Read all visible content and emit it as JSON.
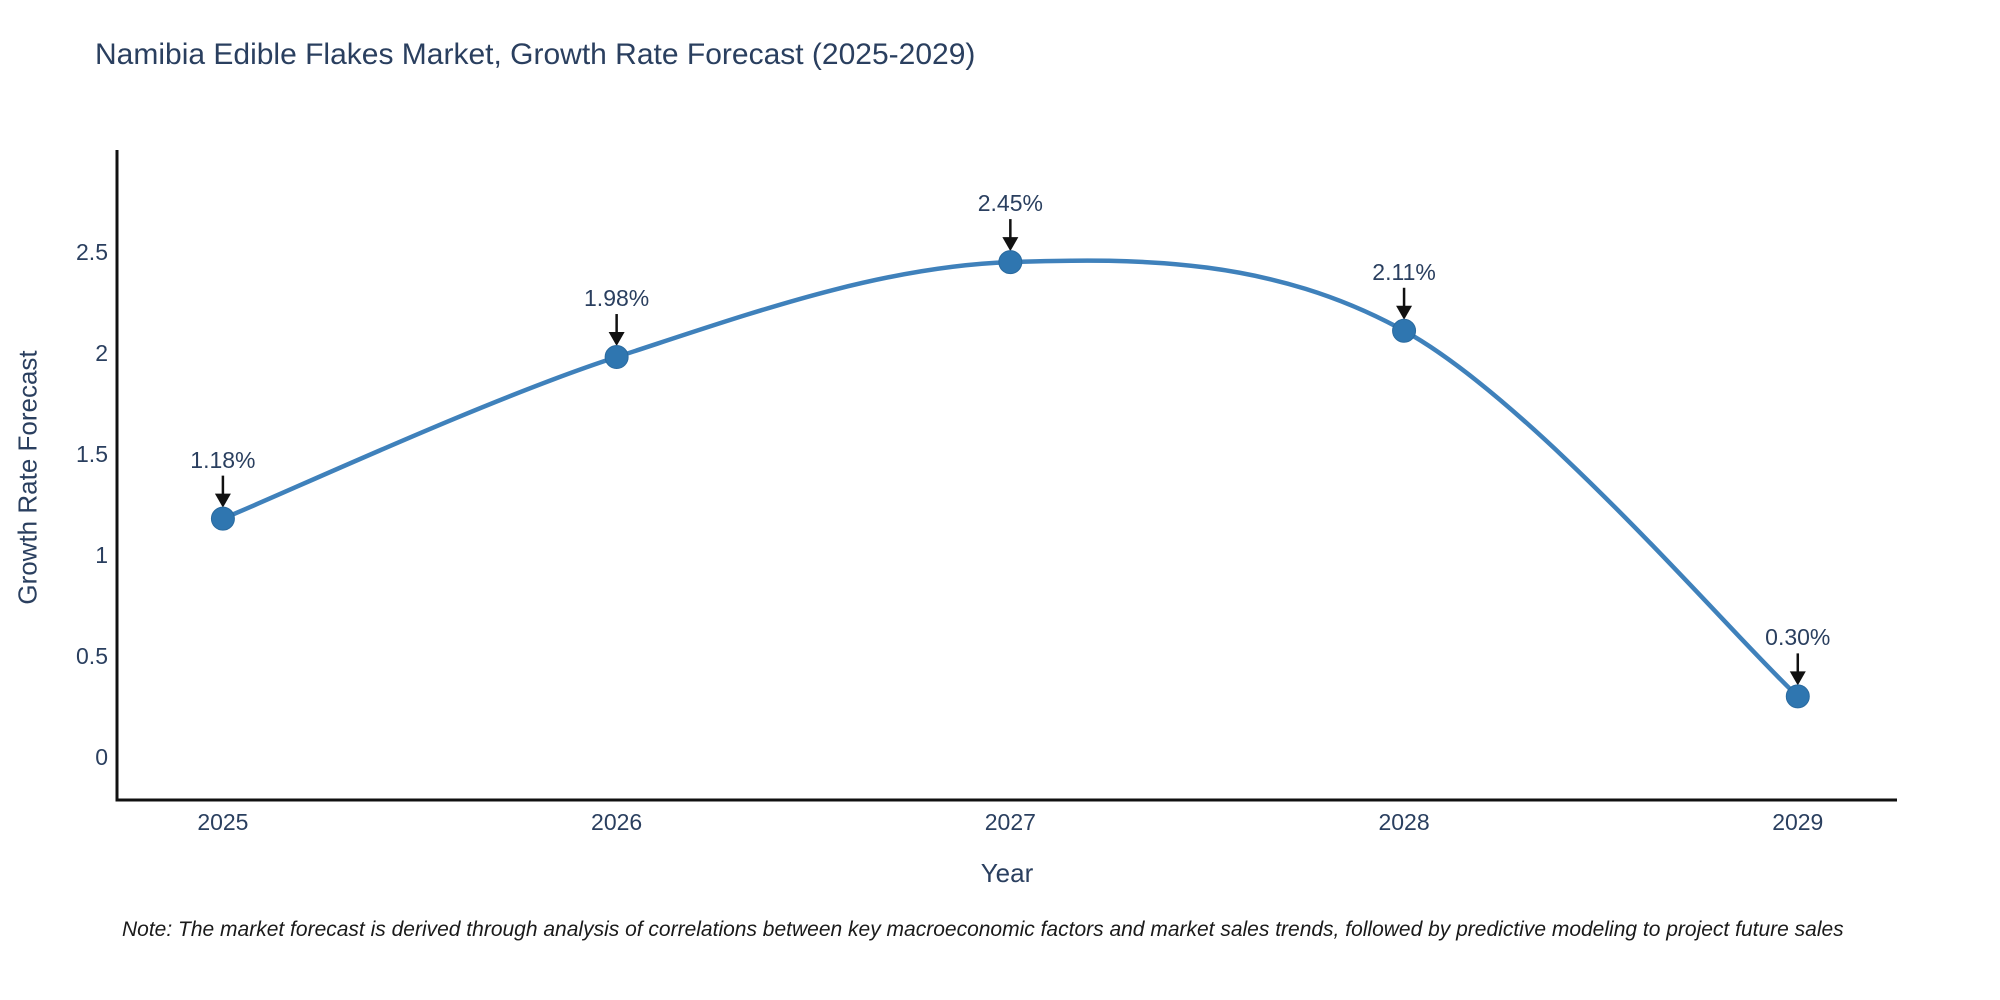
{
  "chart_data": {
    "type": "line",
    "title": "Namibia Edible Flakes Market, Growth Rate Forecast (2025-2029)",
    "xlabel": "Year",
    "ylabel": "Growth Rate Forecast",
    "x": [
      2025,
      2026,
      2027,
      2028,
      2029
    ],
    "series": [
      {
        "name": "Growth Rate Forecast",
        "values": [
          1.18,
          1.98,
          2.45,
          2.11,
          0.3
        ],
        "point_labels": [
          "1.18%",
          "1.98%",
          "2.45%",
          "2.11%",
          "0.30%"
        ]
      }
    ],
    "line_shape": "spline",
    "markers": true,
    "grid": false,
    "legend_position": "none",
    "xtick_labels": [
      "2025",
      "2026",
      "2027",
      "2028",
      "2029"
    ],
    "ytick_values": [
      0,
      0.5,
      1,
      1.5,
      2,
      2.5
    ],
    "ytick_labels": [
      "0",
      "0.5",
      "1",
      "1.5",
      "2",
      "2.5"
    ],
    "xlim": [
      2024.731,
      2029.252
    ],
    "ylim": [
      -0.213,
      3.005
    ],
    "colors": {
      "line": "#3f81bb",
      "marker": "#2f76b0",
      "marker_edge": "#2a6a9f",
      "axis_line": "#111111",
      "text": "#2a3f5f",
      "arrow": "#111111",
      "background": "#ffffff"
    },
    "note": "Note: The market forecast is derived through analysis of correlations between key macroeconomic factors and market sales trends, followed by predictive modeling to project future sales"
  }
}
